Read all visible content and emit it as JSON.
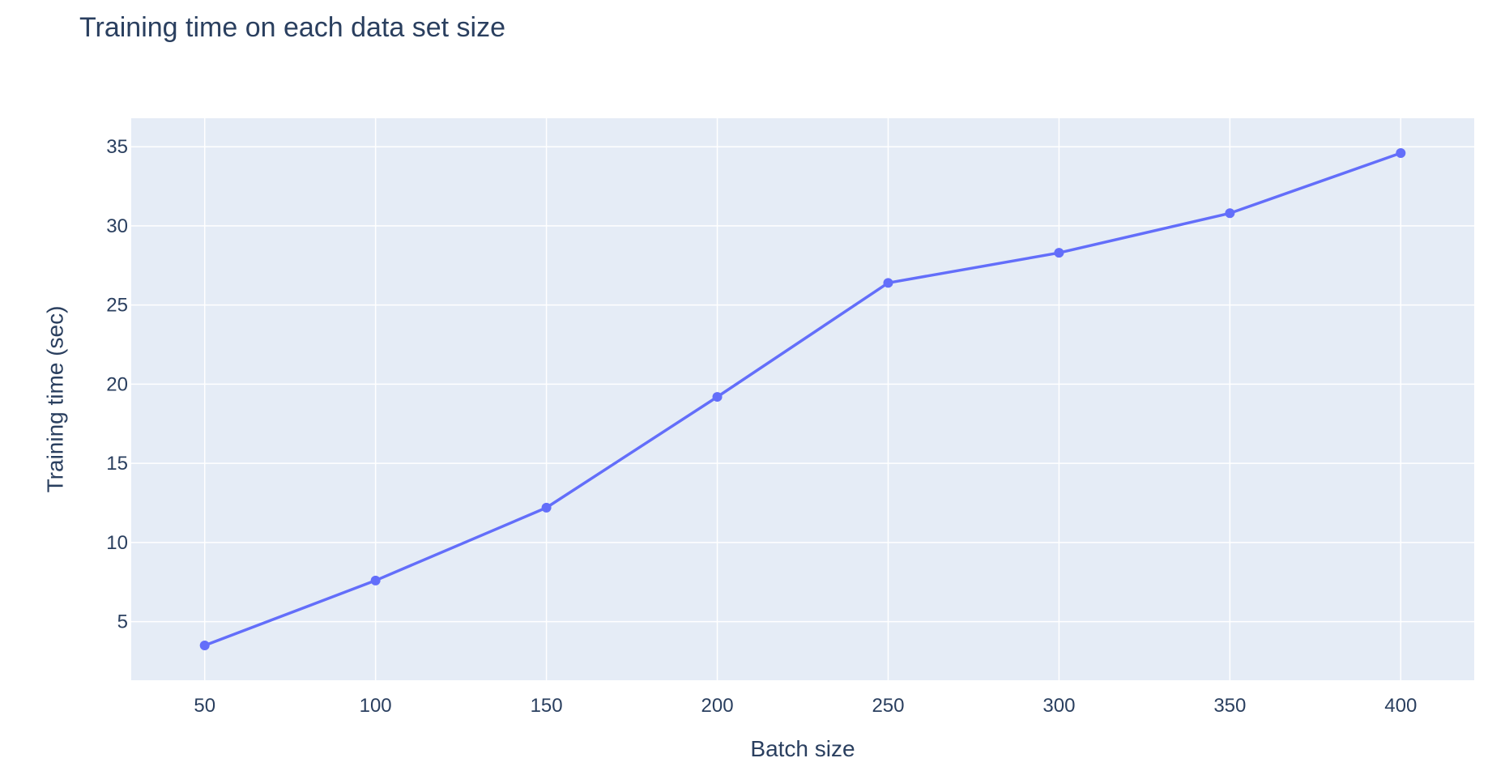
{
  "chart_data": {
    "type": "line",
    "title": "Training time on each data set size",
    "xlabel": "Batch size",
    "ylabel": "Training time (sec)",
    "x": [
      50,
      100,
      150,
      200,
      250,
      300,
      350,
      400
    ],
    "series": [
      {
        "values": [
          3.5,
          7.6,
          12.2,
          19.2,
          26.4,
          28.3,
          30.8,
          34.6
        ]
      }
    ],
    "xlim": [
      28.5,
      421.5
    ],
    "ylim": [
      1.3,
      36.8
    ],
    "xticks": [
      50,
      100,
      150,
      200,
      250,
      300,
      350,
      400
    ],
    "yticks": [
      5,
      10,
      15,
      20,
      25,
      30,
      35
    ],
    "grid": true,
    "legend": "none",
    "colors": {
      "line": "#636efa",
      "plot_background": "#e5ecf6",
      "grid": "#ffffff",
      "text": "#2a3f5f"
    }
  }
}
